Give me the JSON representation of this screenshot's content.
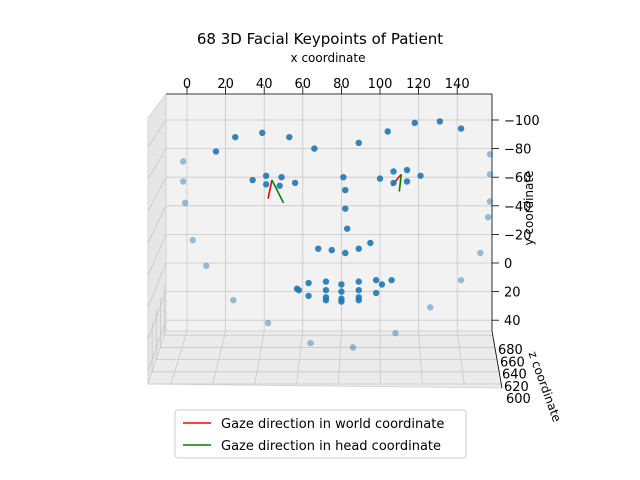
{
  "chart_data": {
    "type": "scatter",
    "projection": "3d",
    "title": "68 3D Facial Keypoints of Patient",
    "xlabel": "x coordinate",
    "ylabel": "y coordinate",
    "zlabel": "z coordinate",
    "xlim": [
      -10,
      150
    ],
    "ylim": [
      -110,
      50
    ],
    "zlim": [
      600,
      690
    ],
    "xticks": [
      "0",
      "20",
      "40",
      "60",
      "80",
      "100",
      "120",
      "140"
    ],
    "yticks": [
      "−100",
      "−80",
      "−60",
      "−40",
      "−20",
      "0",
      "20",
      "40"
    ],
    "zticks": [
      "600",
      "620",
      "640",
      "660",
      "680"
    ],
    "grid": true,
    "legend_position": "bottom-center",
    "point_color": "#1f77b4",
    "keypoints": [
      {
        "x": -2,
        "y": -71
      },
      {
        "x": -2,
        "y": -57
      },
      {
        "x": -1,
        "y": -42
      },
      {
        "x": 3,
        "y": -16
      },
      {
        "x": 10,
        "y": 2
      },
      {
        "x": 24,
        "y": 26
      },
      {
        "x": 42,
        "y": 42
      },
      {
        "x": 64,
        "y": 56
      },
      {
        "x": 86,
        "y": 59
      },
      {
        "x": 108,
        "y": 49
      },
      {
        "x": 126,
        "y": 31
      },
      {
        "x": 142,
        "y": 12
      },
      {
        "x": 152,
        "y": -7
      },
      {
        "x": 156,
        "y": -32
      },
      {
        "x": 157,
        "y": -43
      },
      {
        "x": 157,
        "y": -62
      },
      {
        "x": 157,
        "y": -76
      },
      {
        "x": 15,
        "y": -78
      },
      {
        "x": 25,
        "y": -88
      },
      {
        "x": 39,
        "y": -91
      },
      {
        "x": 53,
        "y": -88
      },
      {
        "x": 66,
        "y": -80
      },
      {
        "x": 89,
        "y": -84
      },
      {
        "x": 104,
        "y": -92
      },
      {
        "x": 118,
        "y": -98
      },
      {
        "x": 131,
        "y": -99
      },
      {
        "x": 142,
        "y": -94
      },
      {
        "x": 81,
        "y": -60
      },
      {
        "x": 82,
        "y": -51
      },
      {
        "x": 82,
        "y": -38
      },
      {
        "x": 83,
        "y": -24
      },
      {
        "x": 68,
        "y": -10
      },
      {
        "x": 75,
        "y": -9
      },
      {
        "x": 82,
        "y": -7
      },
      {
        "x": 89,
        "y": -10
      },
      {
        "x": 95,
        "y": -14
      },
      {
        "x": 34,
        "y": -58
      },
      {
        "x": 41,
        "y": -61
      },
      {
        "x": 49,
        "y": -60
      },
      {
        "x": 56,
        "y": -56
      },
      {
        "x": 48,
        "y": -54
      },
      {
        "x": 41,
        "y": -55
      },
      {
        "x": 100,
        "y": -59
      },
      {
        "x": 107,
        "y": -64
      },
      {
        "x": 114,
        "y": -65
      },
      {
        "x": 121,
        "y": -61
      },
      {
        "x": 114,
        "y": -57
      },
      {
        "x": 107,
        "y": -56
      },
      {
        "x": 57,
        "y": 18
      },
      {
        "x": 63,
        "y": 14
      },
      {
        "x": 72,
        "y": 13
      },
      {
        "x": 80,
        "y": 15
      },
      {
        "x": 89,
        "y": 13
      },
      {
        "x": 98,
        "y": 12
      },
      {
        "x": 106,
        "y": 12
      },
      {
        "x": 98,
        "y": 21
      },
      {
        "x": 89,
        "y": 26
      },
      {
        "x": 80,
        "y": 27
      },
      {
        "x": 72,
        "y": 26
      },
      {
        "x": 63,
        "y": 23
      },
      {
        "x": 58,
        "y": 19
      },
      {
        "x": 72,
        "y": 19
      },
      {
        "x": 80,
        "y": 20
      },
      {
        "x": 89,
        "y": 19
      },
      {
        "x": 101,
        "y": 15
      },
      {
        "x": 89,
        "y": 24
      },
      {
        "x": 80,
        "y": 25
      },
      {
        "x": 72,
        "y": 24
      }
    ],
    "gaze_lines": [
      {
        "name": "Gaze direction in world coordinate",
        "color": "#ff0000",
        "segments": [
          {
            "x1": 44,
            "y1": -58,
            "x2": 42,
            "y2": -45
          },
          {
            "x1": 111,
            "y1": -62,
            "x2": 106,
            "y2": -54
          }
        ]
      },
      {
        "name": "Gaze direction in head coordinate",
        "color": "#008000",
        "segments": [
          {
            "x1": 44,
            "y1": -58,
            "x2": 50,
            "y2": -42
          },
          {
            "x1": 111,
            "y1": -62,
            "x2": 110,
            "y2": -50
          }
        ]
      }
    ]
  }
}
